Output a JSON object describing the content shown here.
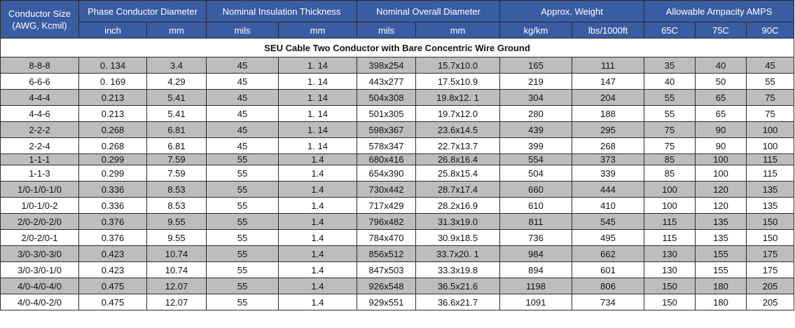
{
  "table": {
    "headers": {
      "conductor_size_line1": "Conductor Size",
      "conductor_size_line2": "(AWG, Kcmil)",
      "groups": [
        {
          "label": "Phase Conductor Diameter"
        },
        {
          "label": "Nominal Insulation Thickness"
        },
        {
          "label": "Nominal Overall Diameter"
        },
        {
          "label": "Approx. Weight"
        },
        {
          "label": "Allowable Ampacity AMPS"
        }
      ],
      "units": [
        "inch",
        "mm",
        "mils",
        "mm",
        "mils",
        "mm",
        "kg/km",
        "lbs/1000ft",
        "65C",
        "75C",
        "90C"
      ]
    },
    "caption": "SEU Cable Two Conductor with Bare Concentric Wire Ground",
    "rows": [
      [
        "8-8-8",
        "0. 134",
        "3.4",
        "45",
        "1. 14",
        "398x254",
        "15.7x10.0",
        "165",
        "111",
        "35",
        "40",
        "45"
      ],
      [
        "6-6-6",
        "0. 169",
        "4.29",
        "45",
        "1. 14",
        "443x277",
        "17.5x10.9",
        "219",
        "147",
        "40",
        "50",
        "55"
      ],
      [
        "4-4-4",
        "0.213",
        "5.41",
        "45",
        "1. 14",
        "504x308",
        "19.8x12. 1",
        "304",
        "204",
        "55",
        "65",
        "75"
      ],
      [
        "4-4-6",
        "0.213",
        "5.41",
        "45",
        "1. 14",
        "501x305",
        "19.7x12.0",
        "280",
        "188",
        "55",
        "65",
        "75"
      ],
      [
        "2-2-2",
        "0.268",
        "6.81",
        "45",
        "1. 14",
        "598x367",
        "23.6x14.5",
        "439",
        "295",
        "75",
        "90",
        "100"
      ],
      [
        "2-2-4",
        "0.268",
        "6.81",
        "45",
        "1. 14",
        "578x347",
        "22.7x13.7",
        "399",
        "268",
        "75",
        "90",
        "100"
      ],
      [
        "1-1-1",
        "0.299",
        "7.59",
        "55",
        "1.4",
        "680x416",
        "26.8x16.4",
        "554",
        "373",
        "85",
        "100",
        "115"
      ],
      [
        "1-1-3",
        "0.299",
        "7.59",
        "55",
        "1.4",
        "654x390",
        "25.8x15.4",
        "504",
        "339",
        "85",
        "100",
        "115"
      ],
      [
        "1/0-1/0-1/0",
        "0.336",
        "8.53",
        "55",
        "1.4",
        "730x442",
        "28.7x17.4",
        "660",
        "444",
        "100",
        "120",
        "135"
      ],
      [
        "1/0-1/0-2",
        "0.336",
        "8.53",
        "55",
        "1.4",
        "717x429",
        "28.2x16.9",
        "610",
        "410",
        "100",
        "120",
        "135"
      ],
      [
        "2/0-2/0-2/0",
        "0.376",
        "9.55",
        "55",
        "1.4",
        "796x482",
        "31.3x19.0",
        "811",
        "545",
        "115",
        "135",
        "150"
      ],
      [
        "2/0-2/0-1",
        "0.376",
        "9.55",
        "55",
        "1.4",
        "784x470",
        "30.9x18.5",
        "736",
        "495",
        "115",
        "135",
        "150"
      ],
      [
        "3/0-3/0-3/0",
        "0.423",
        "10.74",
        "55",
        "1.4",
        "856x512",
        "33.7x20. 1",
        "984",
        "662",
        "130",
        "155",
        "175"
      ],
      [
        "3/0-3/0-1/0",
        "0.423",
        "10.74",
        "55",
        "1.4",
        "847x503",
        "33.3x19.8",
        "894",
        "601",
        "130",
        "155",
        "175"
      ],
      [
        "4/0-4/0-4/0",
        "0.475",
        "12.07",
        "55",
        "1.4",
        "926x548",
        "36.5x21.6",
        "1198",
        "806",
        "150",
        "180",
        "205"
      ],
      [
        "4/0-4/0-2/0",
        "0.475",
        "12.07",
        "55",
        "1.4",
        "929x551",
        "36.6x21.7",
        "1091",
        "734",
        "150",
        "180",
        "205"
      ]
    ]
  }
}
